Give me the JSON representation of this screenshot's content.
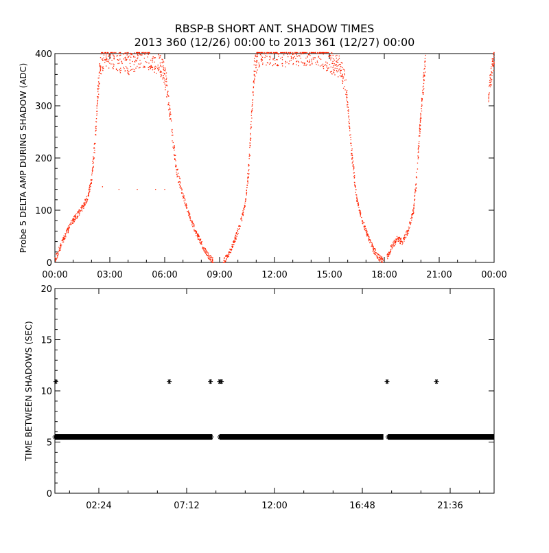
{
  "header": {
    "title": "RBSP-B SHORT ANT. SHADOW TIMES",
    "subtitle": "2013 360 (12/26) 00:00 to 2013 361 (12/27) 00:00"
  },
  "colors": {
    "background": "#ffffff",
    "axes": "#000000",
    "top_series": "#ff2200",
    "bottom_series": "#000000"
  },
  "chart_data": [
    {
      "id": "shadow-amplitude",
      "type": "scatter",
      "title": "",
      "xlabel": "",
      "ylabel": "Probe 5 DELTA AMP DURING SHADOW (ADC)",
      "xlim": [
        0,
        24
      ],
      "ylim": [
        0,
        400
      ],
      "x_unit": "hours",
      "x_ticks": [
        0,
        3,
        6,
        9,
        12,
        15,
        18,
        21,
        24
      ],
      "x_tick_labels": [
        "00:00",
        "03:00",
        "06:00",
        "09:00",
        "12:00",
        "15:00",
        "18:00",
        "21:00",
        "00:00"
      ],
      "y_ticks": [
        0,
        100,
        200,
        300,
        400
      ],
      "y_tick_labels": [
        "0",
        "100",
        "200",
        "300",
        "400"
      ],
      "marker": "dot",
      "grid": false,
      "legend": "none",
      "series": [
        {
          "segments": [
            {
              "x": [
                0.0,
                0.3,
                0.6,
                0.9,
                1.2,
                1.5,
                1.8,
                2.0,
                2.2,
                2.35,
                2.5,
                2.8,
                3.2,
                3.6,
                4.0,
                4.4,
                4.8,
                5.2,
                5.6,
                5.9,
                6.1,
                6.3,
                6.6,
                6.9,
                7.2,
                7.5,
                7.8,
                8.1,
                8.4,
                8.65
              ],
              "y": [
                5,
                30,
                55,
                75,
                90,
                105,
                125,
                160,
                230,
                330,
                380,
                395,
                390,
                385,
                380,
                385,
                395,
                390,
                380,
                370,
                340,
                280,
                190,
                140,
                105,
                75,
                50,
                30,
                12,
                2
              ]
            },
            {
              "x": [
                9.2,
                9.5,
                9.8,
                10.1,
                10.4,
                10.6,
                10.75,
                10.9,
                11.1,
                11.5,
                12.0,
                12.5,
                13.0,
                13.4,
                13.8,
                14.2,
                14.6,
                15.0,
                15.3,
                15.6,
                15.9,
                16.1,
                16.3,
                16.5,
                16.8,
                17.1,
                17.4,
                17.7,
                17.95
              ],
              "y": [
                2,
                15,
                40,
                70,
                110,
                180,
                280,
                370,
                395,
                400,
                398,
                395,
                400,
                398,
                395,
                400,
                395,
                385,
                380,
                375,
                340,
                260,
                180,
                120,
                80,
                50,
                25,
                10,
                2
              ]
            },
            {
              "x": [
                18.15,
                18.4,
                18.7,
                19.0,
                19.3,
                19.6,
                19.8,
                19.95,
                20.1,
                20.25
              ],
              "y": [
                10,
                30,
                45,
                40,
                60,
                100,
                180,
                260,
                330,
                380
              ]
            },
            {
              "x": [
                23.7,
                23.85,
                24.0
              ],
              "y": [
                320,
                360,
                395
              ]
            }
          ]
        }
      ],
      "annotations": [
        {
          "x": [
            2.6,
            3.5,
            4.5,
            5.5,
            6.0
          ],
          "y": [
            145,
            140,
            140,
            140,
            140
          ],
          "note": "sparse points"
        }
      ]
    },
    {
      "id": "time-between-shadows",
      "type": "scatter",
      "title": "",
      "xlabel": "",
      "ylabel": "TIME BETWEEN SHADOWS (SEC)",
      "xlim": [
        0,
        24
      ],
      "ylim": [
        0,
        20
      ],
      "x_unit": "hours",
      "x_ticks": [
        2.4,
        7.2,
        12.0,
        16.8,
        21.6
      ],
      "x_tick_labels": [
        "02:24",
        "07:12",
        "12:00",
        "16:48",
        "21:36"
      ],
      "y_ticks": [
        0,
        5,
        10,
        15,
        20
      ],
      "y_tick_labels": [
        "0",
        "5",
        "10",
        "15",
        "20"
      ],
      "marker": "asterisk",
      "grid": false,
      "legend": "none",
      "series": [
        {
          "bands": [
            {
              "x_start": 0.0,
              "x_end": 8.6,
              "y": 5.5
            },
            {
              "x_start": 9.0,
              "x_end": 17.95,
              "y": 5.5
            },
            {
              "x_start": 18.2,
              "x_end": 24.0,
              "y": 5.5
            }
          ],
          "outliers": {
            "x": [
              0.05,
              6.25,
              8.5,
              9.0,
              9.1,
              18.15,
              20.85
            ],
            "y": [
              10.9,
              10.9,
              10.9,
              10.9,
              10.9,
              10.9,
              10.9
            ]
          }
        }
      ]
    }
  ]
}
